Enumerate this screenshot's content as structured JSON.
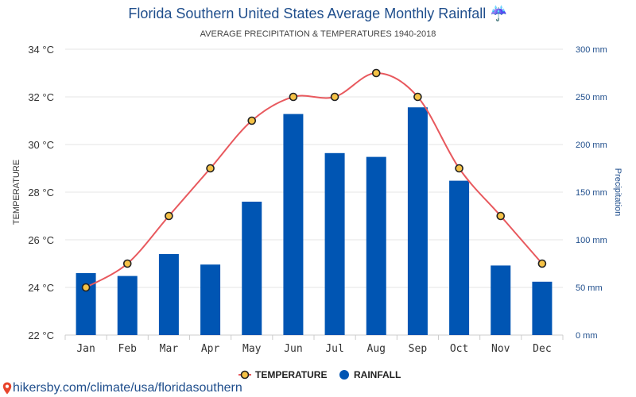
{
  "chart_data": {
    "type": "bar",
    "title": "Florida Southern United States Average Monthly Rainfall ☔",
    "subtitle": "AVERAGE PRECIPITATION & TEMPERATURES 1940-2018",
    "categories": [
      "Jan",
      "Feb",
      "Mar",
      "Apr",
      "May",
      "Jun",
      "Jul",
      "Aug",
      "Sep",
      "Oct",
      "Nov",
      "Dec"
    ],
    "series": [
      {
        "name": "RAINFALL",
        "type": "bar",
        "axis": "right",
        "unit": "mm",
        "color": "#0055b3",
        "values": [
          65,
          62,
          85,
          74,
          140,
          232,
          191,
          187,
          239,
          162,
          73,
          56
        ]
      },
      {
        "name": "TEMPERATURE",
        "type": "line",
        "axis": "left",
        "unit": "°C",
        "color": "#e8595e",
        "marker_color": "#f5c246",
        "values": [
          24,
          25,
          27,
          29,
          31,
          32,
          32,
          33,
          32,
          29,
          27,
          25
        ]
      }
    ],
    "y_left": {
      "label": "TEMPERATURE",
      "range": [
        22,
        34
      ],
      "ticks": [
        "22 °C",
        "24 °C",
        "26 °C",
        "28 °C",
        "30 °C",
        "32 °C",
        "34 °C"
      ]
    },
    "y_right": {
      "label": "Precipitation",
      "range": [
        0,
        300
      ],
      "ticks": [
        "0 mm",
        "50 mm",
        "100 mm",
        "150 mm",
        "200 mm",
        "250 mm",
        "300 mm"
      ]
    },
    "grid": true,
    "legend_position": "bottom-center"
  },
  "legend": {
    "temperature": "TEMPERATURE",
    "rainfall": "RAINFALL"
  },
  "source": {
    "text": "hikersby.com/climate/usa/floridasouthern",
    "icon": "map-pin-icon"
  }
}
